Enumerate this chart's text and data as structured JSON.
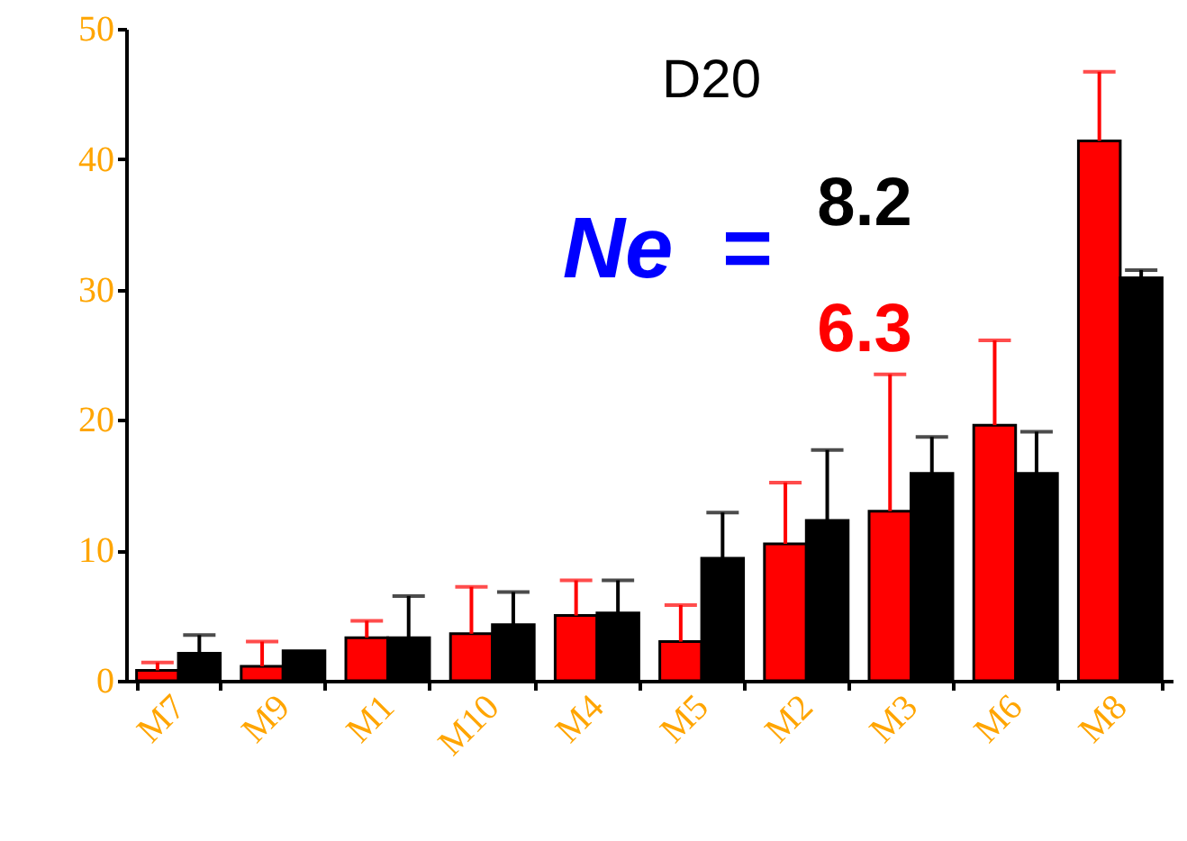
{
  "chart_data": {
    "type": "bar",
    "categories": [
      "M7",
      "M9",
      "M1",
      "M10",
      "M4",
      "M5",
      "M2",
      "M3",
      "M6",
      "M8"
    ],
    "series": [
      {
        "color": "#ff0000",
        "values": [
          0.8,
          1.1,
          3.3,
          3.6,
          5.0,
          3.0,
          10.5,
          13.0,
          19.6,
          41.4
        ],
        "errors": [
          [
            0.8,
            1.4
          ],
          [
            1.1,
            3.0
          ],
          [
            3.3,
            4.6
          ],
          [
            3.6,
            7.2
          ],
          [
            5.0,
            7.7
          ],
          [
            3.0,
            5.8
          ],
          [
            10.5,
            15.2
          ],
          [
            13.0,
            23.5
          ],
          [
            19.6,
            26.1
          ],
          [
            41.4,
            46.7
          ]
        ]
      },
      {
        "color": "#000000",
        "values": [
          2.1,
          2.3,
          3.3,
          4.3,
          5.2,
          9.4,
          12.3,
          15.9,
          15.9,
          30.9
        ],
        "errors": [
          [
            2.1,
            3.5
          ],
          null,
          [
            3.3,
            6.5
          ],
          [
            4.3,
            6.8
          ],
          [
            5.2,
            7.7
          ],
          [
            9.4,
            12.9
          ],
          [
            12.3,
            17.7
          ],
          [
            15.9,
            18.7
          ],
          [
            15.9,
            19.1
          ],
          [
            30.9,
            31.5
          ]
        ]
      }
    ],
    "ylim": [
      0,
      50
    ],
    "yticks": [
      0,
      10,
      20,
      30,
      40,
      50
    ],
    "grid": false,
    "annotations": [
      "D20",
      "Ne",
      "=",
      "8.2",
      "6.3"
    ]
  }
}
